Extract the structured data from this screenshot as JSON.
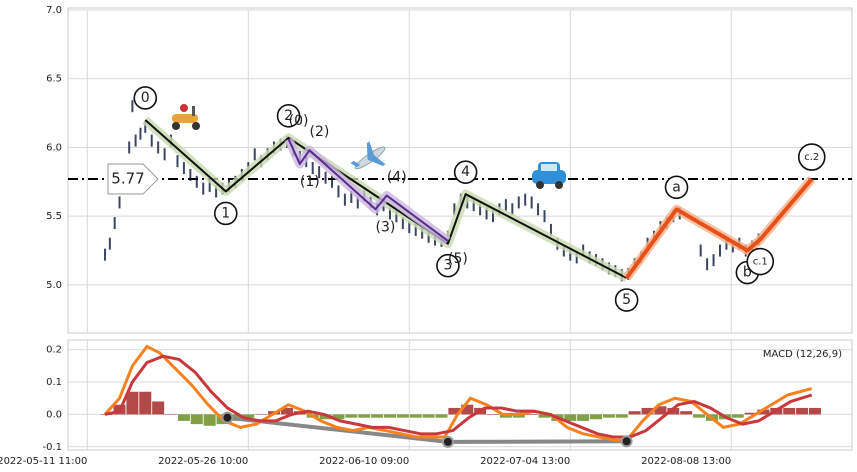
{
  "chart_data": [
    {
      "type": "wave",
      "xlim": [
        -12,
        475
      ],
      "ylim": [
        4.65,
        7.0
      ],
      "yticks": [
        {
          "value": 5.0,
          "label": "5.0"
        },
        5.5,
        {
          "value": 6.0,
          "label": "6.0"
        },
        6.5,
        {
          "value": 7.0,
          "label": "7.0"
        }
      ],
      "grid": true,
      "price": {
        "color": "#3a4660",
        "x": [
          11,
          14,
          17,
          20,
          23,
          26,
          28,
          30,
          33,
          36,
          40,
          44,
          48,
          52,
          56,
          60,
          64,
          68,
          72,
          76,
          80,
          84,
          88,
          92,
          96,
          100,
          104,
          108,
          112,
          116,
          120,
          124,
          128,
          132,
          136,
          140,
          144,
          148,
          152,
          156,
          160,
          164,
          168,
          172,
          176,
          180,
          184,
          188,
          192,
          196,
          200,
          204,
          208,
          212,
          216,
          220,
          224,
          228,
          232,
          236,
          240,
          244,
          248,
          252,
          256,
          260,
          264,
          268,
          272,
          276,
          280,
          284,
          288,
          292,
          296,
          300,
          304,
          308,
          312,
          316,
          320,
          324,
          328,
          332,
          336,
          340,
          344,
          348,
          352,
          356,
          360,
          364,
          368,
          381,
          385,
          389,
          393,
          397,
          401,
          405,
          409,
          413,
          417
        ],
        "values": [
          5.22,
          5.3,
          5.45,
          5.6,
          5.8,
          6.0,
          6.3,
          6.05,
          6.1,
          6.15,
          6.05,
          6.0,
          5.95,
          6.05,
          5.9,
          5.85,
          5.8,
          5.75,
          5.7,
          5.72,
          5.68,
          5.7,
          5.72,
          5.75,
          5.8,
          5.85,
          5.95,
          5.9,
          5.95,
          6.0,
          6.02,
          6.04,
          5.98,
          5.93,
          5.9,
          5.85,
          5.82,
          5.78,
          5.75,
          5.68,
          5.62,
          5.64,
          5.6,
          5.65,
          5.6,
          5.55,
          5.58,
          5.52,
          5.5,
          5.45,
          5.42,
          5.4,
          5.38,
          5.35,
          5.33,
          5.32,
          5.35,
          5.55,
          5.62,
          5.6,
          5.58,
          5.55,
          5.52,
          5.5,
          5.55,
          5.58,
          5.55,
          5.6,
          5.62,
          5.6,
          5.55,
          5.5,
          5.4,
          5.3,
          5.25,
          5.22,
          5.2,
          5.25,
          5.2,
          5.18,
          5.15,
          5.12,
          5.1,
          5.07,
          5.08,
          5.15,
          5.2,
          5.3,
          5.35,
          5.42,
          5.45,
          5.5,
          5.52,
          5.25,
          5.15,
          5.18,
          5.25,
          5.3,
          5.28,
          5.3,
          5.25,
          5.28,
          5.33
        ]
      },
      "hline": {
        "value": 5.77,
        "color": "#000"
      },
      "waves": [
        {
          "color": "#111",
          "glow": "#c9d9b1",
          "label_style": "circle",
          "x": [
            36,
            86,
            125,
            224,
            235,
            335
          ],
          "values": [
            6.2,
            5.68,
            6.07,
            5.3,
            5.66,
            5.05
          ],
          "labels": [
            "0",
            "1",
            "2",
            "3",
            "4",
            "5"
          ]
        },
        {
          "color": "#5b2c8f",
          "glow": "#c8b8e0",
          "label_style": "text",
          "x": [
            125,
            132,
            138,
            179,
            186,
            224
          ],
          "values": [
            6.06,
            5.88,
            5.98,
            5.55,
            5.65,
            5.32
          ],
          "labels": [
            "(0)",
            "(1)",
            "(2)",
            "(3)",
            "(4)",
            "(5)"
          ]
        },
        {
          "color": "#e8501a",
          "glow": "#f6b28a",
          "label_style": "circle",
          "x": [
            335,
            366,
            410,
            418,
            450
          ],
          "values": [
            5.05,
            5.55,
            5.25,
            5.33,
            5.77
          ],
          "labels": [
            null,
            "a",
            "b",
            "c.1",
            "c.2"
          ]
        }
      ]
    },
    {
      "type": "macd",
      "title": "MACD (12,26,9)",
      "xlim": [
        -12,
        475
      ],
      "ylim": [
        -0.11,
        0.23
      ],
      "yticks": [
        -0.1,
        {
          "value": 0.0,
          "label": "0.0"
        },
        0.1,
        0.2
      ],
      "xticks": [
        {
          "value": 0,
          "label": "2022-05-11 11:00"
        },
        {
          "value": 100,
          "label": "2022-05-26 10:00"
        },
        {
          "value": 200,
          "label": "2022-06-10 09:00"
        },
        {
          "value": 300,
          "label": "2022-07-04 13:00"
        },
        {
          "value": 400,
          "label": "2022-08-08 13:00"
        }
      ],
      "grid": true,
      "series": [
        {
          "color": "#f5821f",
          "x": [
            11,
            20,
            28,
            37,
            45,
            55,
            65,
            75,
            85,
            95,
            105,
            115,
            125,
            135,
            145,
            155,
            165,
            175,
            185,
            195,
            205,
            215,
            222,
            230,
            238,
            248,
            258,
            268,
            278,
            288,
            298,
            308,
            318,
            328,
            335,
            345,
            355,
            365,
            375,
            385,
            395,
            405,
            415,
            425,
            435,
            450
          ],
          "values": [
            0.0,
            0.05,
            0.15,
            0.21,
            0.19,
            0.14,
            0.09,
            0.03,
            -0.02,
            -0.04,
            -0.03,
            0.0,
            0.03,
            0.01,
            -0.02,
            -0.04,
            -0.05,
            -0.04,
            -0.05,
            -0.06,
            -0.07,
            -0.07,
            -0.07,
            0.0,
            0.05,
            0.03,
            0.0,
            0.0,
            0.01,
            0.0,
            -0.04,
            -0.06,
            -0.07,
            -0.08,
            -0.08,
            -0.02,
            0.03,
            0.05,
            0.04,
            0.0,
            -0.04,
            -0.03,
            0.0,
            0.03,
            0.06,
            0.08
          ]
        },
        {
          "color": "#c8383c",
          "x": [
            11,
            20,
            28,
            37,
            47,
            57,
            67,
            77,
            87,
            97,
            107,
            117,
            127,
            137,
            147,
            157,
            167,
            177,
            187,
            197,
            207,
            217,
            227,
            237,
            247,
            257,
            267,
            277,
            287,
            297,
            307,
            317,
            327,
            337,
            347,
            357,
            367,
            377,
            387,
            397,
            407,
            417,
            427,
            437,
            450
          ],
          "values": [
            0.0,
            0.01,
            0.1,
            0.16,
            0.18,
            0.17,
            0.13,
            0.07,
            0.02,
            -0.01,
            -0.02,
            -0.02,
            0.0,
            0.01,
            0.0,
            -0.02,
            -0.03,
            -0.04,
            -0.04,
            -0.05,
            -0.06,
            -0.06,
            -0.05,
            -0.01,
            0.02,
            0.02,
            0.01,
            0.01,
            0.0,
            -0.02,
            -0.04,
            -0.06,
            -0.07,
            -0.07,
            -0.05,
            -0.01,
            0.03,
            0.04,
            0.02,
            -0.01,
            -0.03,
            -0.02,
            0.01,
            0.04,
            0.06
          ]
        }
      ],
      "histogram": {
        "pos_color": "#a52a2a",
        "neg_color": "#6b8e23",
        "x": [
          12,
          20,
          28,
          36,
          44,
          52,
          60,
          68,
          76,
          84,
          92,
          100,
          108,
          116,
          124,
          132,
          140,
          148,
          156,
          164,
          172,
          180,
          188,
          196,
          204,
          212,
          220,
          228,
          236,
          244,
          252,
          260,
          268,
          276,
          284,
          292,
          300,
          308,
          316,
          324,
          332,
          340,
          348,
          356,
          364,
          372,
          380,
          388,
          396,
          404,
          412,
          420,
          428,
          436,
          444,
          452
        ],
        "values": [
          0.0,
          0.03,
          0.07,
          0.07,
          0.04,
          0.0,
          -0.02,
          -0.03,
          -0.035,
          -0.03,
          -0.02,
          -0.01,
          0.0,
          0.01,
          0.02,
          0.01,
          -0.01,
          -0.015,
          -0.015,
          -0.01,
          -0.01,
          -0.01,
          -0.01,
          -0.01,
          -0.01,
          -0.01,
          -0.01,
          0.02,
          0.03,
          0.02,
          0.0,
          -0.01,
          -0.01,
          0.0,
          -0.01,
          -0.02,
          -0.02,
          -0.02,
          -0.015,
          -0.01,
          -0.01,
          0.01,
          0.02,
          0.025,
          0.02,
          0.01,
          -0.01,
          -0.02,
          -0.015,
          -0.01,
          0.005,
          0.015,
          0.02,
          0.02,
          0.02,
          0.02
        ]
      },
      "divergence": {
        "color": "#888",
        "x": [
          87,
          224,
          335
        ],
        "values": [
          -0.01,
          -0.085,
          -0.083
        ]
      }
    }
  ]
}
